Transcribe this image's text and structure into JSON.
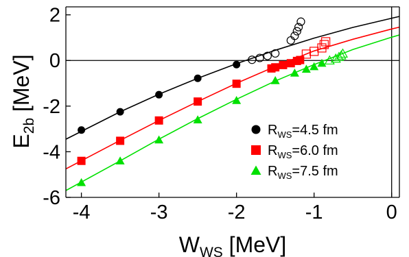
{
  "chart_data": {
    "type": "scatter",
    "xlabel": {
      "main": "W",
      "sub": "WS",
      "unit": " [MeV]"
    },
    "ylabel": {
      "main": "E",
      "sub": "2b",
      "unit": " [MeV]"
    },
    "xlim": [
      -4.2,
      0.1
    ],
    "ylim": [
      -6,
      2.35
    ],
    "x_ticks": [
      -4,
      -3,
      -2,
      -1,
      0
    ],
    "y_ticks": [
      2,
      0,
      -2,
      -4,
      -6
    ],
    "reference_lines": {
      "y": 0,
      "x": 0
    },
    "series": [
      {
        "name": "=4.5 fm",
        "legend_main": "R",
        "legend_sub": "WS",
        "legend_rest": "=4.5 fm",
        "color": "#000000",
        "marker": "circle",
        "filled_points": [
          [
            -4.0,
            -3.05
          ],
          [
            -3.5,
            -2.25
          ],
          [
            -3.0,
            -1.5
          ],
          [
            -2.5,
            -0.78
          ],
          [
            -2.0,
            -0.18
          ]
        ],
        "open_points": [
          [
            -1.8,
            0.03
          ],
          [
            -1.7,
            0.11
          ],
          [
            -1.6,
            0.2
          ],
          [
            -1.5,
            0.31
          ],
          [
            -1.3,
            0.88
          ],
          [
            -1.25,
            1.08
          ],
          [
            -1.22,
            1.28
          ],
          [
            -1.2,
            1.46
          ],
          [
            -1.17,
            1.7
          ]
        ],
        "curve": [
          [
            -4.2,
            -3.45
          ],
          [
            -3.5,
            -2.25
          ],
          [
            -3.0,
            -1.48
          ],
          [
            -2.5,
            -0.78
          ],
          [
            -2.0,
            -0.14
          ],
          [
            -1.5,
            0.45
          ],
          [
            -1.0,
            0.98
          ],
          [
            -0.5,
            1.45
          ],
          [
            0.0,
            1.85
          ],
          [
            0.1,
            1.93
          ]
        ]
      },
      {
        "name": "=6.0 fm",
        "legend_main": "R",
        "legend_sub": "WS",
        "legend_rest": "=6.0 fm",
        "color": "#ff0000",
        "marker": "square",
        "filled_points": [
          [
            -4.0,
            -4.4
          ],
          [
            -3.5,
            -3.52
          ],
          [
            -3.0,
            -2.63
          ],
          [
            -2.5,
            -1.8
          ],
          [
            -2.0,
            -1.02
          ],
          [
            -1.55,
            -0.35
          ],
          [
            -1.5,
            -0.3
          ],
          [
            -1.4,
            -0.2
          ],
          [
            -1.3,
            -0.12
          ],
          [
            -1.22,
            -0.02
          ],
          [
            -1.18,
            0.02
          ]
        ],
        "open_points": [
          [
            -1.1,
            0.28
          ],
          [
            -1.0,
            0.4
          ],
          [
            -0.9,
            0.55
          ],
          [
            -0.87,
            0.7
          ],
          [
            -0.85,
            0.82
          ]
        ],
        "curve": [
          [
            -4.2,
            -4.75
          ],
          [
            -3.5,
            -3.5
          ],
          [
            -3.0,
            -2.63
          ],
          [
            -2.5,
            -1.8
          ],
          [
            -2.0,
            -1.0
          ],
          [
            -1.5,
            -0.26
          ],
          [
            -1.0,
            0.42
          ],
          [
            -0.5,
            0.93
          ],
          [
            0.0,
            1.38
          ],
          [
            0.1,
            1.46
          ]
        ]
      },
      {
        "name": "=7.5 fm",
        "legend_main": "R",
        "legend_sub": "WS",
        "legend_rest": "=7.5 fm",
        "color": "#00e000",
        "marker": "triangle",
        "filled_points": [
          [
            -4.0,
            -5.35
          ],
          [
            -3.5,
            -4.4
          ],
          [
            -3.0,
            -3.48
          ],
          [
            -2.5,
            -2.6
          ],
          [
            -2.0,
            -1.75
          ],
          [
            -1.5,
            -0.88
          ],
          [
            -1.25,
            -0.55
          ],
          [
            -1.1,
            -0.38
          ],
          [
            -1.0,
            -0.27
          ],
          [
            -0.9,
            -0.12
          ]
        ],
        "open_points": [
          [
            -0.8,
            0.0
          ],
          [
            -0.72,
            0.08
          ],
          [
            -0.68,
            0.15
          ],
          [
            -0.65,
            0.22
          ],
          [
            -0.63,
            0.3
          ]
        ],
        "curve": [
          [
            -4.2,
            -5.7
          ],
          [
            -3.5,
            -4.4
          ],
          [
            -3.0,
            -3.45
          ],
          [
            -2.5,
            -2.55
          ],
          [
            -2.0,
            -1.7
          ],
          [
            -1.5,
            -0.9
          ],
          [
            -1.0,
            -0.18
          ],
          [
            -0.5,
            0.48
          ],
          [
            0.0,
            1.02
          ],
          [
            0.1,
            1.12
          ]
        ]
      }
    ]
  }
}
